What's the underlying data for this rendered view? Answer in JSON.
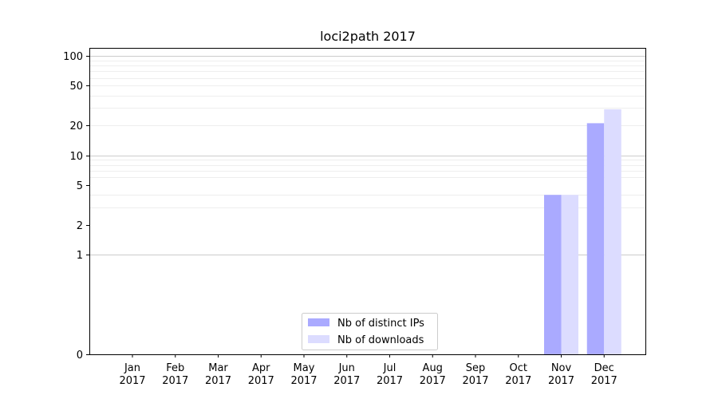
{
  "chart_data": {
    "type": "bar",
    "title": "loci2path 2017",
    "xlabel": "",
    "ylabel": "",
    "y_scale": "symlog",
    "ylim": [
      0,
      120
    ],
    "y_ticks": [
      0,
      1,
      2,
      5,
      10,
      20,
      50,
      100
    ],
    "grid": "horizontal",
    "legend_placement": "lower-center",
    "categories": [
      [
        "Jan",
        "2017"
      ],
      [
        "Feb",
        "2017"
      ],
      [
        "Mar",
        "2017"
      ],
      [
        "Apr",
        "2017"
      ],
      [
        "May",
        "2017"
      ],
      [
        "Jun",
        "2017"
      ],
      [
        "Jul",
        "2017"
      ],
      [
        "Aug",
        "2017"
      ],
      [
        "Sep",
        "2017"
      ],
      [
        "Oct",
        "2017"
      ],
      [
        "Nov",
        "2017"
      ],
      [
        "Dec",
        "2017"
      ]
    ],
    "series": [
      {
        "name": "Nb of distinct IPs",
        "color": "#aaaaff",
        "values": [
          0,
          0,
          0,
          0,
          0,
          0,
          0,
          0,
          0,
          0,
          4,
          21
        ]
      },
      {
        "name": "Nb of downloads",
        "color": "#dcdcff",
        "values": [
          0,
          0,
          0,
          0,
          0,
          0,
          0,
          0,
          0,
          0,
          4,
          29
        ]
      }
    ]
  }
}
